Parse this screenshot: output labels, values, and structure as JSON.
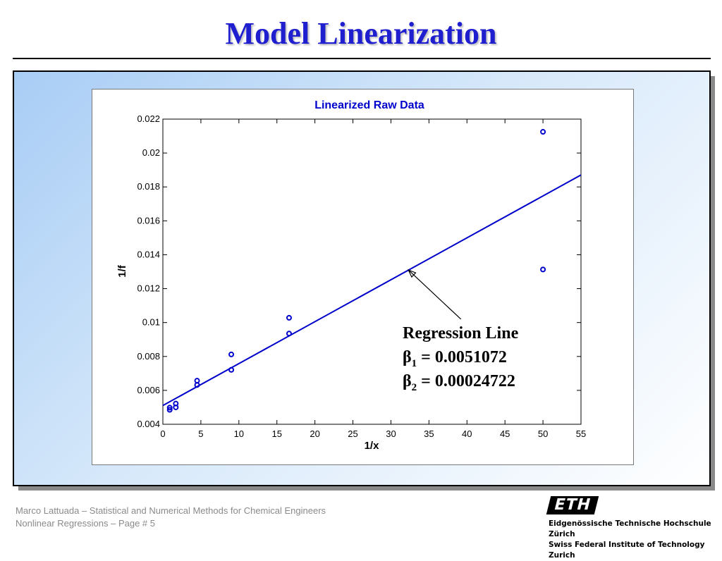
{
  "slide": {
    "title": "Model Linearization",
    "footer_line1": "Marco Lattuada – Statistical and Numerical Methods for Chemical Engineers",
    "footer_line2": "Nonlinear Regressions – Page #  5",
    "logo_text": "ETH",
    "institution_line1": "Eidgenössische Technische Hochschule Zürich",
    "institution_line2": "Swiss Federal Institute of Technology Zurich"
  },
  "chart_data": {
    "type": "scatter",
    "title": "Linearized Raw Data",
    "xlabel": "1/x",
    "ylabel": "1/f",
    "xlim": [
      0,
      55
    ],
    "ylim": [
      0.004,
      0.022
    ],
    "xticks": [
      0,
      5,
      10,
      15,
      20,
      25,
      30,
      35,
      40,
      45,
      50,
      55
    ],
    "yticks": [
      0.004,
      0.006,
      0.008,
      0.01,
      0.012,
      0.014,
      0.016,
      0.018,
      0.02,
      0.022
    ],
    "grid": false,
    "colors": {
      "series": "#0000cc",
      "line": "#0000cc",
      "text": "#000000",
      "title": "#0000cc"
    },
    "points": [
      {
        "x": 0.9,
        "y": 0.00485
      },
      {
        "x": 0.9,
        "y": 0.00498
      },
      {
        "x": 1.7,
        "y": 0.005
      },
      {
        "x": 1.7,
        "y": 0.00522
      },
      {
        "x": 4.5,
        "y": 0.00632
      },
      {
        "x": 4.5,
        "y": 0.00657
      },
      {
        "x": 9.0,
        "y": 0.00721
      },
      {
        "x": 9.0,
        "y": 0.00812
      },
      {
        "x": 16.6,
        "y": 0.00935
      },
      {
        "x": 16.6,
        "y": 0.01028
      },
      {
        "x": 50.0,
        "y": 0.01313
      },
      {
        "x": 50.0,
        "y": 0.02125
      }
    ],
    "regression": {
      "label": "Regression Line",
      "beta1_symbol": "β",
      "beta1_sub": "1",
      "beta1_value": " = 0.0051072",
      "beta2_symbol": "β",
      "beta2_sub": "2",
      "beta2_value": " = 0.00024722",
      "intercept": 0.0051072,
      "slope": 0.00024722,
      "arrow_tip": {
        "x": 32.3,
        "y": 0.0131
      },
      "arrow_tail": {
        "x": 39.2,
        "y": 0.0102
      }
    }
  }
}
